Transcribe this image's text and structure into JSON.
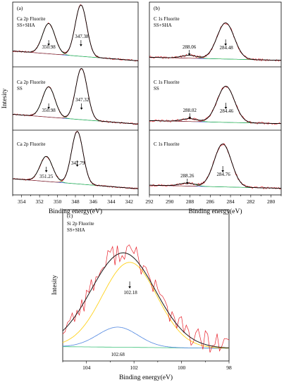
{
  "chart_data": [
    {
      "panel": "(a)",
      "type": "line",
      "xlabel": "Binding energy(eV)",
      "ylabel": "Intesity",
      "xlim": [
        355,
        341
      ],
      "x_ticks": [
        354,
        352,
        350,
        348,
        346,
        344,
        342
      ],
      "x_reversed": true,
      "spectra": [
        {
          "label": [
            "Ca 2p Fluorite",
            "SS+SHA"
          ],
          "peaks": [
            {
              "center": 350.98,
              "label": "350.98"
            },
            {
              "center": 347.38,
              "label": "347.38"
            }
          ]
        },
        {
          "label": [
            "Ca 2p Fluorite",
            "SS"
          ],
          "peaks": [
            {
              "center": 350.98,
              "label": "350.98"
            },
            {
              "center": 347.32,
              "label": "347.32"
            }
          ]
        },
        {
          "label": [
            "Ca 2p Fluorite"
          ],
          "peaks": [
            {
              "center": 351.25,
              "label": "351.25"
            },
            {
              "center": 347.79,
              "label": "347.79"
            }
          ]
        }
      ]
    },
    {
      "panel": "(b)",
      "type": "line",
      "xlabel": "Binding energy(eV)",
      "ylabel": "",
      "xlim": [
        292,
        279
      ],
      "x_ticks": [
        292,
        290,
        288,
        286,
        284,
        282,
        280
      ],
      "x_reversed": true,
      "spectra": [
        {
          "label": [
            "C 1s Fluorite",
            "SS+SHA"
          ],
          "peaks": [
            {
              "center": 288.06,
              "label": "288.06"
            },
            {
              "center": 284.48,
              "label": "284.48"
            }
          ]
        },
        {
          "label": [
            "C 1s Fluorite",
            "SS"
          ],
          "peaks": [
            {
              "center": 288.02,
              "label": "288.02"
            },
            {
              "center": 284.46,
              "label": "284.46"
            }
          ]
        },
        {
          "label": [
            "C 1s Fluorite"
          ],
          "peaks": [
            {
              "center": 288.26,
              "label": "288.26"
            },
            {
              "center": 284.76,
              "label": "284.76"
            }
          ]
        }
      ]
    },
    {
      "panel": "(c)",
      "type": "line",
      "xlabel": "Binding energy(eV)",
      "ylabel": "Intesity",
      "xlim": [
        105,
        98
      ],
      "x_ticks": [
        104,
        102,
        100,
        98
      ],
      "x_reversed": true,
      "spectra": [
        {
          "label": [
            "Si 2p Fluorite",
            "SS+SHA"
          ],
          "peaks": [
            {
              "center": 102.18,
              "label": "102.18"
            },
            {
              "center": 102.68,
              "label": "102.68"
            }
          ]
        }
      ]
    }
  ],
  "colors": {
    "raw": "#e8202a",
    "envelope": "#000000",
    "fit_main": "#9a2c22",
    "fit_minor": "#2fc24a",
    "background": "#2a4fd6",
    "envelope_c": "#1a1a1a",
    "fit_c_main": "#ffd21c",
    "fit_c_minor": "#4f86e0",
    "background_c": "#3ec27a"
  }
}
